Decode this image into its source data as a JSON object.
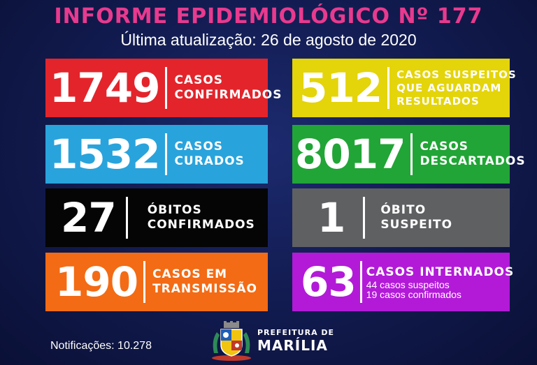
{
  "header": {
    "title": "INFORME EPIDEMIOLÓGICO Nº 177",
    "subtitle": "Última atualização: 26 de agosto de 2020"
  },
  "cards": {
    "confirmed": {
      "value": "1749",
      "label1": "CASOS",
      "label2": "CONFIRMADOS",
      "color": "#e3242b"
    },
    "suspected": {
      "value": "512",
      "label1": "CASOS SUSPEITOS",
      "label2": "QUE AGUARDAM",
      "label3": "RESULTADOS",
      "color": "#e4d40a"
    },
    "recovered": {
      "value": "1532",
      "label1": "CASOS",
      "label2": "CURADOS",
      "color": "#29a3dc"
    },
    "discarded": {
      "value": "8017",
      "label1": "CASOS",
      "label2": "DESCARTADOS",
      "color": "#21a536"
    },
    "deaths": {
      "value": "27",
      "label1": "ÓBITOS",
      "label2": "CONFIRMADOS",
      "color": "#050505"
    },
    "suspected_death": {
      "value": "1",
      "label1": "ÓBITO",
      "label2": "SUSPEITO",
      "color": "#5f6062"
    },
    "transmission": {
      "value": "190",
      "label1": "CASOS EM",
      "label2": "TRANSMISSÃO",
      "color": "#f36b14"
    },
    "hospitalized": {
      "value": "63",
      "label1": "CASOS INTERNADOS",
      "detail1": "44 casos suspeitos",
      "detail2": "19 casos confirmados",
      "color": "#b21ad8"
    }
  },
  "footer": {
    "notifications": "Notificações: 10.278",
    "logo_line1": "PREFEITURA DE",
    "logo_line2": "MARÍLIA"
  }
}
